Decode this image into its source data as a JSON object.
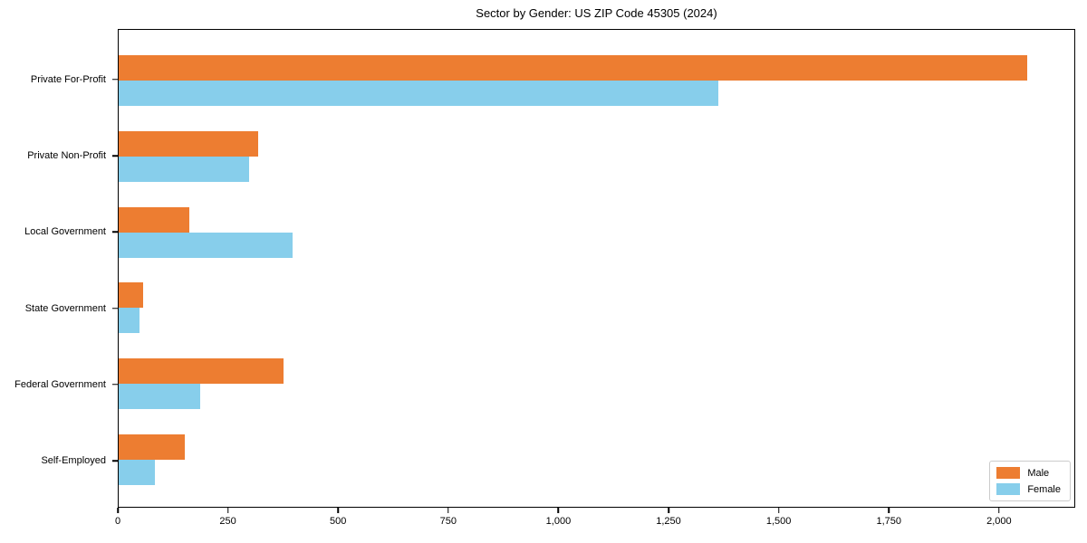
{
  "chart_data": {
    "type": "bar",
    "orientation": "horizontal",
    "title": "Sector by Gender: US ZIP Code 45305 (2024)",
    "categories": [
      "Private For-Profit",
      "Private Non-Profit",
      "Local Government",
      "State Government",
      "Federal Government",
      "Self-Employed"
    ],
    "series": [
      {
        "name": "Male",
        "color": "#ED7D31",
        "values": [
          2065,
          317,
          160,
          56,
          374,
          150
        ]
      },
      {
        "name": "Female",
        "color": "#87CEEB",
        "values": [
          1363,
          296,
          395,
          48,
          186,
          82
        ]
      }
    ],
    "xlabel": "",
    "ylabel": "",
    "xlim": [
      0,
      2173
    ],
    "xticks": [
      0,
      250,
      500,
      750,
      1000,
      1250,
      1500,
      1750,
      2000
    ],
    "xtick_labels": [
      "0",
      "250",
      "500",
      "750",
      "1,000",
      "1,250",
      "1,500",
      "1,750",
      "2,000"
    ],
    "grid": false,
    "legend_position": "lower right",
    "bar_colors": {
      "male": "#ED7D31",
      "female": "#87CEEB"
    }
  }
}
